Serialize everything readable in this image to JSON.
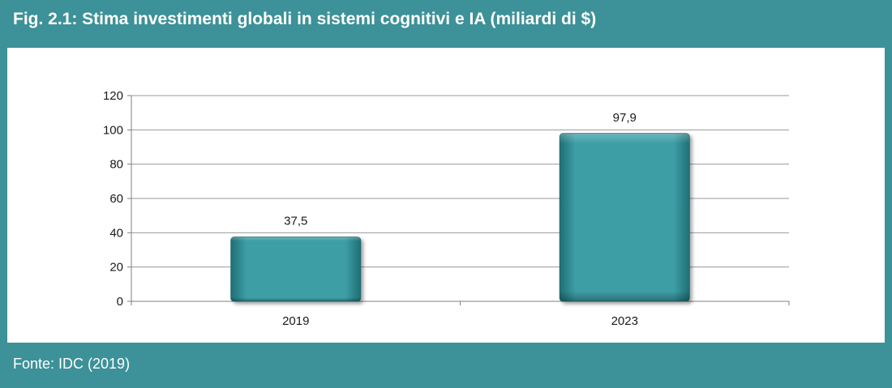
{
  "header": {
    "title": "Fig. 2.1: Stima investimenti globali in sistemi cognitivi e IA (miliardi di $)"
  },
  "footer": {
    "source": "Fonte: IDC (2019)"
  },
  "colors": {
    "frame": "#3d9198",
    "bar": "#3e9ea6",
    "grid": "#9a9a9a"
  },
  "chart_data": {
    "type": "bar",
    "title": "Fig. 2.1: Stima investimenti globali in sistemi cognitivi e IA (miliardi di $)",
    "categories": [
      "2019",
      "2023"
    ],
    "values": [
      37.5,
      97.9
    ],
    "value_labels": [
      "37,5",
      "97,9"
    ],
    "y_ticks": [
      "0",
      "20",
      "40",
      "60",
      "80",
      "100",
      "120"
    ],
    "ylim": [
      0,
      120
    ],
    "xlabel": "",
    "ylabel": "",
    "grid": true,
    "legend": "none"
  }
}
